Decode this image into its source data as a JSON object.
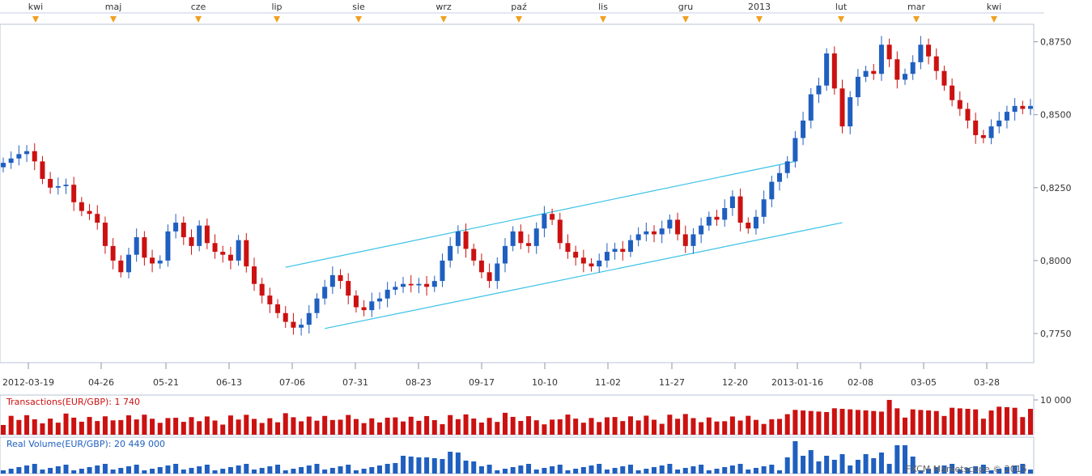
{
  "chart_data": [
    {
      "type": "candlestick",
      "panel": "price",
      "instrument": "EUR/GBP",
      "ylim": [
        0.765,
        0.881
      ],
      "y_ticks": [
        "0,8750",
        "0,8500",
        "0,8250",
        "0,8000",
        "0,7750"
      ],
      "y_tick_values": [
        0.875,
        0.85,
        0.825,
        0.8,
        0.775
      ],
      "top_axis_labels": [
        "kwi",
        "maj",
        "cze",
        "lip",
        "sie",
        "wrz",
        "paź",
        "lis",
        "gru",
        "2013",
        "lut",
        "mar",
        "kwi"
      ],
      "bottom_axis_labels": [
        "2012-03-19",
        "04-26",
        "05-21",
        "06-13",
        "07-06",
        "07-31",
        "08-23",
        "09-17",
        "10-10",
        "11-02",
        "11-27",
        "12-20",
        "2013-01-16",
        "02-08",
        "03-05",
        "03-28"
      ],
      "grid": true,
      "up_color": "#1f5fbf",
      "down_color": "#cc1111",
      "close_series": [
        0.8335,
        0.835,
        0.8365,
        0.8375,
        0.834,
        0.828,
        0.825,
        0.8255,
        0.826,
        0.82,
        0.817,
        0.816,
        0.813,
        0.805,
        0.8,
        0.796,
        0.802,
        0.808,
        0.801,
        0.799,
        0.8,
        0.81,
        0.813,
        0.808,
        0.805,
        0.812,
        0.806,
        0.803,
        0.802,
        0.8,
        0.807,
        0.798,
        0.792,
        0.788,
        0.785,
        0.782,
        0.779,
        0.777,
        0.778,
        0.782,
        0.787,
        0.791,
        0.795,
        0.793,
        0.788,
        0.784,
        0.783,
        0.786,
        0.787,
        0.79,
        0.791,
        0.792,
        0.7915,
        0.792,
        0.791,
        0.793,
        0.8,
        0.805,
        0.81,
        0.804,
        0.8,
        0.796,
        0.793,
        0.799,
        0.805,
        0.81,
        0.806,
        0.805,
        0.811,
        0.816,
        0.814,
        0.806,
        0.803,
        0.801,
        0.799,
        0.798,
        0.8,
        0.803,
        0.804,
        0.803,
        0.807,
        0.809,
        0.81,
        0.809,
        0.811,
        0.814,
        0.809,
        0.805,
        0.809,
        0.812,
        0.815,
        0.814,
        0.818,
        0.822,
        0.813,
        0.811,
        0.815,
        0.821,
        0.827,
        0.83,
        0.834,
        0.842,
        0.848,
        0.857,
        0.86,
        0.871,
        0.859,
        0.846,
        0.856,
        0.863,
        0.865,
        0.864,
        0.874,
        0.869,
        0.862,
        0.864,
        0.868,
        0.874,
        0.87,
        0.865,
        0.86,
        0.855,
        0.852,
        0.848,
        0.843,
        0.842,
        0.846,
        0.848,
        0.851,
        0.853,
        0.852,
        0.853
      ],
      "trend_channel": [
        {
          "name": "upper",
          "from": {
            "index": 36,
            "value": 0.7977
          },
          "to": {
            "index": 101,
            "value": 0.834
          }
        },
        {
          "name": "lower",
          "from": {
            "index": 41,
            "value": 0.7767
          },
          "to": {
            "index": 107,
            "value": 0.813
          }
        }
      ]
    },
    {
      "type": "bar",
      "panel": "transactions",
      "title": "Transactions(EUR/GBP): 1 740",
      "y_tick": "10 000",
      "y_tick_value": 10000,
      "ylim": [
        0,
        10000
      ],
      "color": "#cc1111",
      "description": "daily transaction counts, mostly 3 000–7 000 with a spike near 10 000"
    },
    {
      "type": "bar",
      "panel": "volume",
      "title": "Real Volume(EUR/GBP): 20 449 000",
      "color": "#1f5fbf",
      "description": "daily real volume bars, low with spikes in Aug–Sep 2012 and Jan–Mar 2013"
    }
  ],
  "watermark": "FXCM Marketscope © 2015"
}
